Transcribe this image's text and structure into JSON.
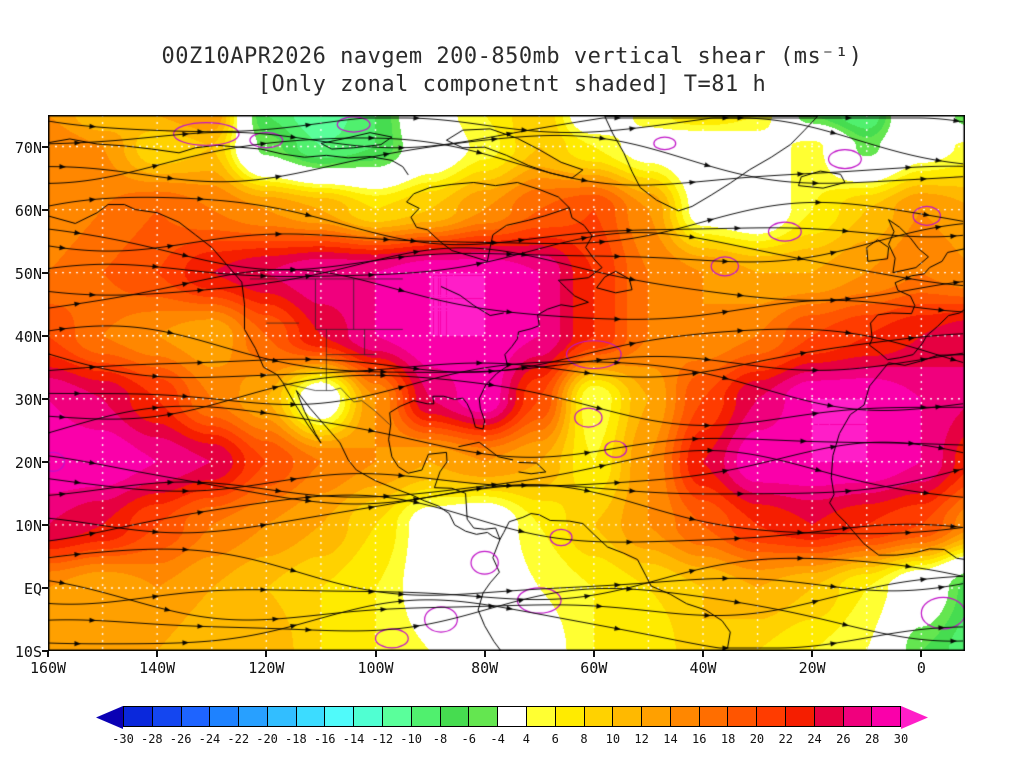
{
  "title": {
    "line1": "00Z10APR2026 navgem 200-850mb vertical shear (ms⁻¹)",
    "line2": "[Only zonal componetnt shaded] T=81 h"
  },
  "axes": {
    "lon_min": -160,
    "lon_max": 8,
    "lat_min": -10,
    "lat_max": 75,
    "y_ticks": [
      {
        "label": "70N",
        "lat": 70
      },
      {
        "label": "60N",
        "lat": 60
      },
      {
        "label": "50N",
        "lat": 50
      },
      {
        "label": "40N",
        "lat": 40
      },
      {
        "label": "30N",
        "lat": 30
      },
      {
        "label": "20N",
        "lat": 20
      },
      {
        "label": "10N",
        "lat": 10
      },
      {
        "label": "EQ",
        "lat": 0
      },
      {
        "label": "10S",
        "lat": -10
      }
    ],
    "x_ticks": [
      {
        "label": "160W",
        "lon": -160
      },
      {
        "label": "140W",
        "lon": -140
      },
      {
        "label": "120W",
        "lon": -120
      },
      {
        "label": "100W",
        "lon": -100
      },
      {
        "label": "80W",
        "lon": -80
      },
      {
        "label": "60W",
        "lon": -60
      },
      {
        "label": "40W",
        "lon": -40
      },
      {
        "label": "20W",
        "lon": -20
      },
      {
        "label": "0",
        "lon": 0
      }
    ]
  },
  "colorbar": {
    "tick_labels": [
      "-30",
      "-28",
      "-26",
      "-24",
      "-22",
      "-20",
      "-18",
      "-16",
      "-14",
      "-12",
      "-10",
      "-8",
      "-6",
      "-4",
      "4",
      "6",
      "8",
      "10",
      "12",
      "14",
      "16",
      "18",
      "20",
      "22",
      "24",
      "26",
      "28",
      "30"
    ]
  },
  "chart_data": {
    "type": "heatmap",
    "subtype": "filled-contour weather map with streamline overlay",
    "title": "00Z10APR2026 navgem 200-850mb vertical shear (ms⁻¹)",
    "subtitle": "[Only zonal componetnt shaded] T=81 h",
    "units": "ms⁻¹",
    "model": "navgem",
    "forecast_hour": "T=81 h",
    "levels": [
      -30,
      -28,
      -26,
      -24,
      -22,
      -20,
      -18,
      -16,
      -14,
      -12,
      -10,
      -8,
      -6,
      -4,
      4,
      6,
      8,
      10,
      12,
      14,
      16,
      18,
      20,
      22,
      24,
      26,
      28,
      30
    ],
    "colors": [
      "#0a00b4",
      "#0a28dc",
      "#1446f0",
      "#1e64ff",
      "#1e82ff",
      "#28a0ff",
      "#32beff",
      "#3cdcff",
      "#50fafa",
      "#50ffd2",
      "#5aff9b",
      "#50f06e",
      "#46dc50",
      "#64e650",
      "#ffffff",
      "#ffff32",
      "#ffeb00",
      "#ffd200",
      "#ffb900",
      "#ffa000",
      "#ff8700",
      "#ff6e00",
      "#ff5500",
      "#ff3c00",
      "#f51e00",
      "#e60041",
      "#f0007d",
      "#fa00aa",
      "#ff1ec8"
    ],
    "lons": [
      -160,
      -150,
      -140,
      -130,
      -120,
      -110,
      -100,
      -90,
      -80,
      -70,
      -60,
      -50,
      -40,
      -30,
      -20,
      -10,
      0,
      10
    ],
    "lats": [
      75,
      70,
      60,
      50,
      40,
      30,
      20,
      10,
      0,
      -10
    ],
    "values": [
      [
        14,
        10,
        12,
        14,
        -8,
        -12,
        -8,
        2,
        6,
        10,
        0,
        5,
        8,
        6,
        -6,
        -10,
        4,
        -8
      ],
      [
        16,
        14,
        8,
        10,
        -5,
        -10,
        -8,
        0,
        5,
        10,
        6,
        2,
        0,
        2,
        5,
        -5,
        2,
        5
      ],
      [
        14,
        16,
        18,
        16,
        14,
        12,
        8,
        10,
        14,
        18,
        20,
        14,
        2,
        0,
        6,
        10,
        14,
        12
      ],
      [
        16,
        18,
        20,
        24,
        26,
        28,
        28,
        30,
        30,
        28,
        22,
        16,
        14,
        12,
        12,
        14,
        16,
        14
      ],
      [
        20,
        16,
        14,
        12,
        18,
        24,
        28,
        30,
        30,
        28,
        22,
        16,
        14,
        16,
        20,
        22,
        24,
        26
      ],
      [
        28,
        26,
        22,
        16,
        12,
        0,
        14,
        26,
        30,
        20,
        4,
        12,
        20,
        26,
        30,
        30,
        28,
        26
      ],
      [
        30,
        30,
        28,
        26,
        20,
        16,
        14,
        12,
        14,
        12,
        6,
        14,
        24,
        30,
        30,
        30,
        28,
        22
      ],
      [
        26,
        24,
        20,
        16,
        14,
        12,
        8,
        2,
        0,
        6,
        10,
        14,
        18,
        22,
        24,
        22,
        20,
        14
      ],
      [
        14,
        12,
        14,
        12,
        10,
        8,
        6,
        2,
        0,
        4,
        6,
        8,
        10,
        12,
        10,
        6,
        0,
        -8
      ],
      [
        12,
        14,
        12,
        10,
        12,
        8,
        6,
        4,
        0,
        2,
        6,
        6,
        10,
        8,
        6,
        4,
        -6,
        -10
      ]
    ],
    "overlays": {
      "streamlines": "black wind streamlines with eastward arrowheads (predominantly westerly flow)",
      "purple_contours": "thin magenta closed contour lines",
      "coastlines": "black coastlines and borders",
      "graticule": "white dotted lat/lon grid every 10 degrees"
    },
    "legend_position": "bottom colorbar"
  }
}
